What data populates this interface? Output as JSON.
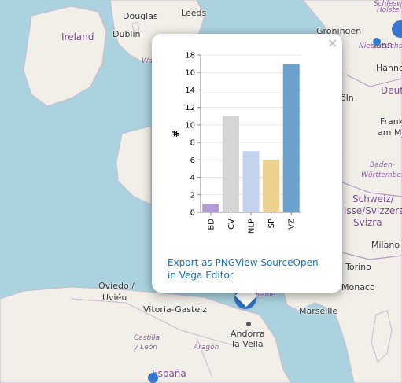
{
  "map": {
    "places": [
      {
        "label": "Douglas",
        "cls": "city"
      },
      {
        "label": "Leeds",
        "cls": "city"
      },
      {
        "label": "Ireland",
        "cls": "country"
      },
      {
        "label": "Dublin",
        "cls": "city"
      },
      {
        "label": "Groningen",
        "cls": "city"
      },
      {
        "label": "Hann",
        "cls": "city"
      },
      {
        "label": "Hanno",
        "cls": "city"
      },
      {
        "label": "Niedersachse",
        "cls": "region"
      },
      {
        "label": "Schleswi",
        "cls": "region"
      },
      {
        "label": "Holstei",
        "cls": "region"
      },
      {
        "label": "Deut",
        "cls": "country"
      },
      {
        "label": "öln",
        "cls": "city"
      },
      {
        "label": "Frank",
        "cls": "city"
      },
      {
        "label": "am M",
        "cls": "city"
      },
      {
        "label": "Baden-",
        "cls": "region"
      },
      {
        "label": "Württemberg",
        "cls": "region"
      },
      {
        "label": "Schweiz/",
        "cls": "country"
      },
      {
        "label": "isse/Svizzera",
        "cls": "country"
      },
      {
        "label": "Svizra",
        "cls": "country"
      },
      {
        "label": "Milano",
        "cls": "city"
      },
      {
        "label": "Torino",
        "cls": "city"
      },
      {
        "label": "Monaco",
        "cls": "city"
      },
      {
        "label": "Marseille",
        "cls": "city"
      },
      {
        "label": "Oviedo /",
        "cls": "city"
      },
      {
        "label": "Uviéu",
        "cls": "city"
      },
      {
        "label": "Vitoria-Gasteiz",
        "cls": "city"
      },
      {
        "label": "Andorra",
        "cls": "city"
      },
      {
        "label": "la Vella",
        "cls": "city"
      },
      {
        "label": "Castilla",
        "cls": "region"
      },
      {
        "label": "y León",
        "cls": "region"
      },
      {
        "label": "Aragón",
        "cls": "region"
      },
      {
        "label": "España",
        "cls": "country"
      },
      {
        "label": "itanie",
        "cls": "region"
      },
      {
        "label": "Wa",
        "cls": "region"
      }
    ]
  },
  "popup": {
    "close_label": "×",
    "actions": {
      "export_png": "Export as PNG",
      "view_source": "View Source",
      "open_editor": "Open in Vega Editor"
    }
  },
  "chart_data": {
    "type": "bar",
    "categories": [
      "BD",
      "CV",
      "NLP",
      "SP",
      "VZ"
    ],
    "values": [
      1,
      11,
      7,
      6,
      17
    ],
    "colors": [
      "#b39ad3",
      "#d5d5d5",
      "#c3d3ef",
      "#ecd18f",
      "#6aa0cb"
    ],
    "ylabel": "#",
    "xlabel": "",
    "ylim": [
      0,
      18
    ],
    "yticks": [
      0,
      2,
      4,
      6,
      8,
      10,
      12,
      14,
      16,
      18
    ],
    "grid": true
  }
}
